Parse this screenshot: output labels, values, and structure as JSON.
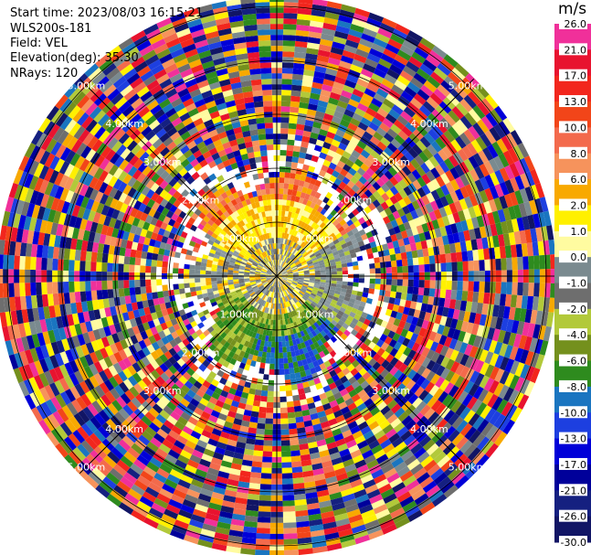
{
  "header": {
    "start_time": "Start time: 2023/08/03 16:15:21",
    "instrument": "WLS200s-181",
    "field": "Field: VEL",
    "elevation": "Elevation(deg): 35.30",
    "nrays": "NRays: 120"
  },
  "colorbar": {
    "unit": "m/s",
    "ticks": [
      "26.0",
      "21.0",
      "17.0",
      "13.0",
      "10.0",
      "8.0",
      "6.0",
      "2.0",
      "1.0",
      "0.0",
      "-1.0",
      "-2.0",
      "-4.0",
      "-6.0",
      "-8.0",
      "-10.0",
      "-13.0",
      "-17.0",
      "-21.0",
      "-26.0",
      "-30.0"
    ],
    "colors": [
      "#f0309a",
      "#e8132f",
      "#f2261d",
      "#f24519",
      "#f36a4c",
      "#f6935c",
      "#f8a900",
      "#fff000",
      "#fffba0",
      "#7a8a8f",
      "#6e6e6e",
      "#b2c93a",
      "#74901d",
      "#2e8b1e",
      "#1a75c0",
      "#1d3fe0",
      "#0000d8",
      "#00009a",
      "#152080",
      "#111565"
    ]
  },
  "chart_data": {
    "type": "heatmap",
    "title": "",
    "field": "VEL",
    "units": "m/s",
    "nrays": 120,
    "elevation_deg": 35.3,
    "range_ring_labels": [
      "1.00km",
      "2.00km",
      "3.00km",
      "4.00km",
      "5.00km"
    ],
    "value_levels": [
      26.0,
      21.0,
      17.0,
      13.0,
      10.0,
      8.0,
      6.0,
      2.0,
      1.0,
      0.0,
      -1.0,
      -2.0,
      -4.0,
      -6.0,
      -8.0,
      -10.0,
      -13.0,
      -17.0,
      -21.0,
      -26.0,
      -30.0
    ],
    "near_field_pattern": "positive (orange/yellow) to the north, near-zero grey in the centre and east, negative (green/blue) to the south; noise beyond ~2 km",
    "grid": true
  }
}
